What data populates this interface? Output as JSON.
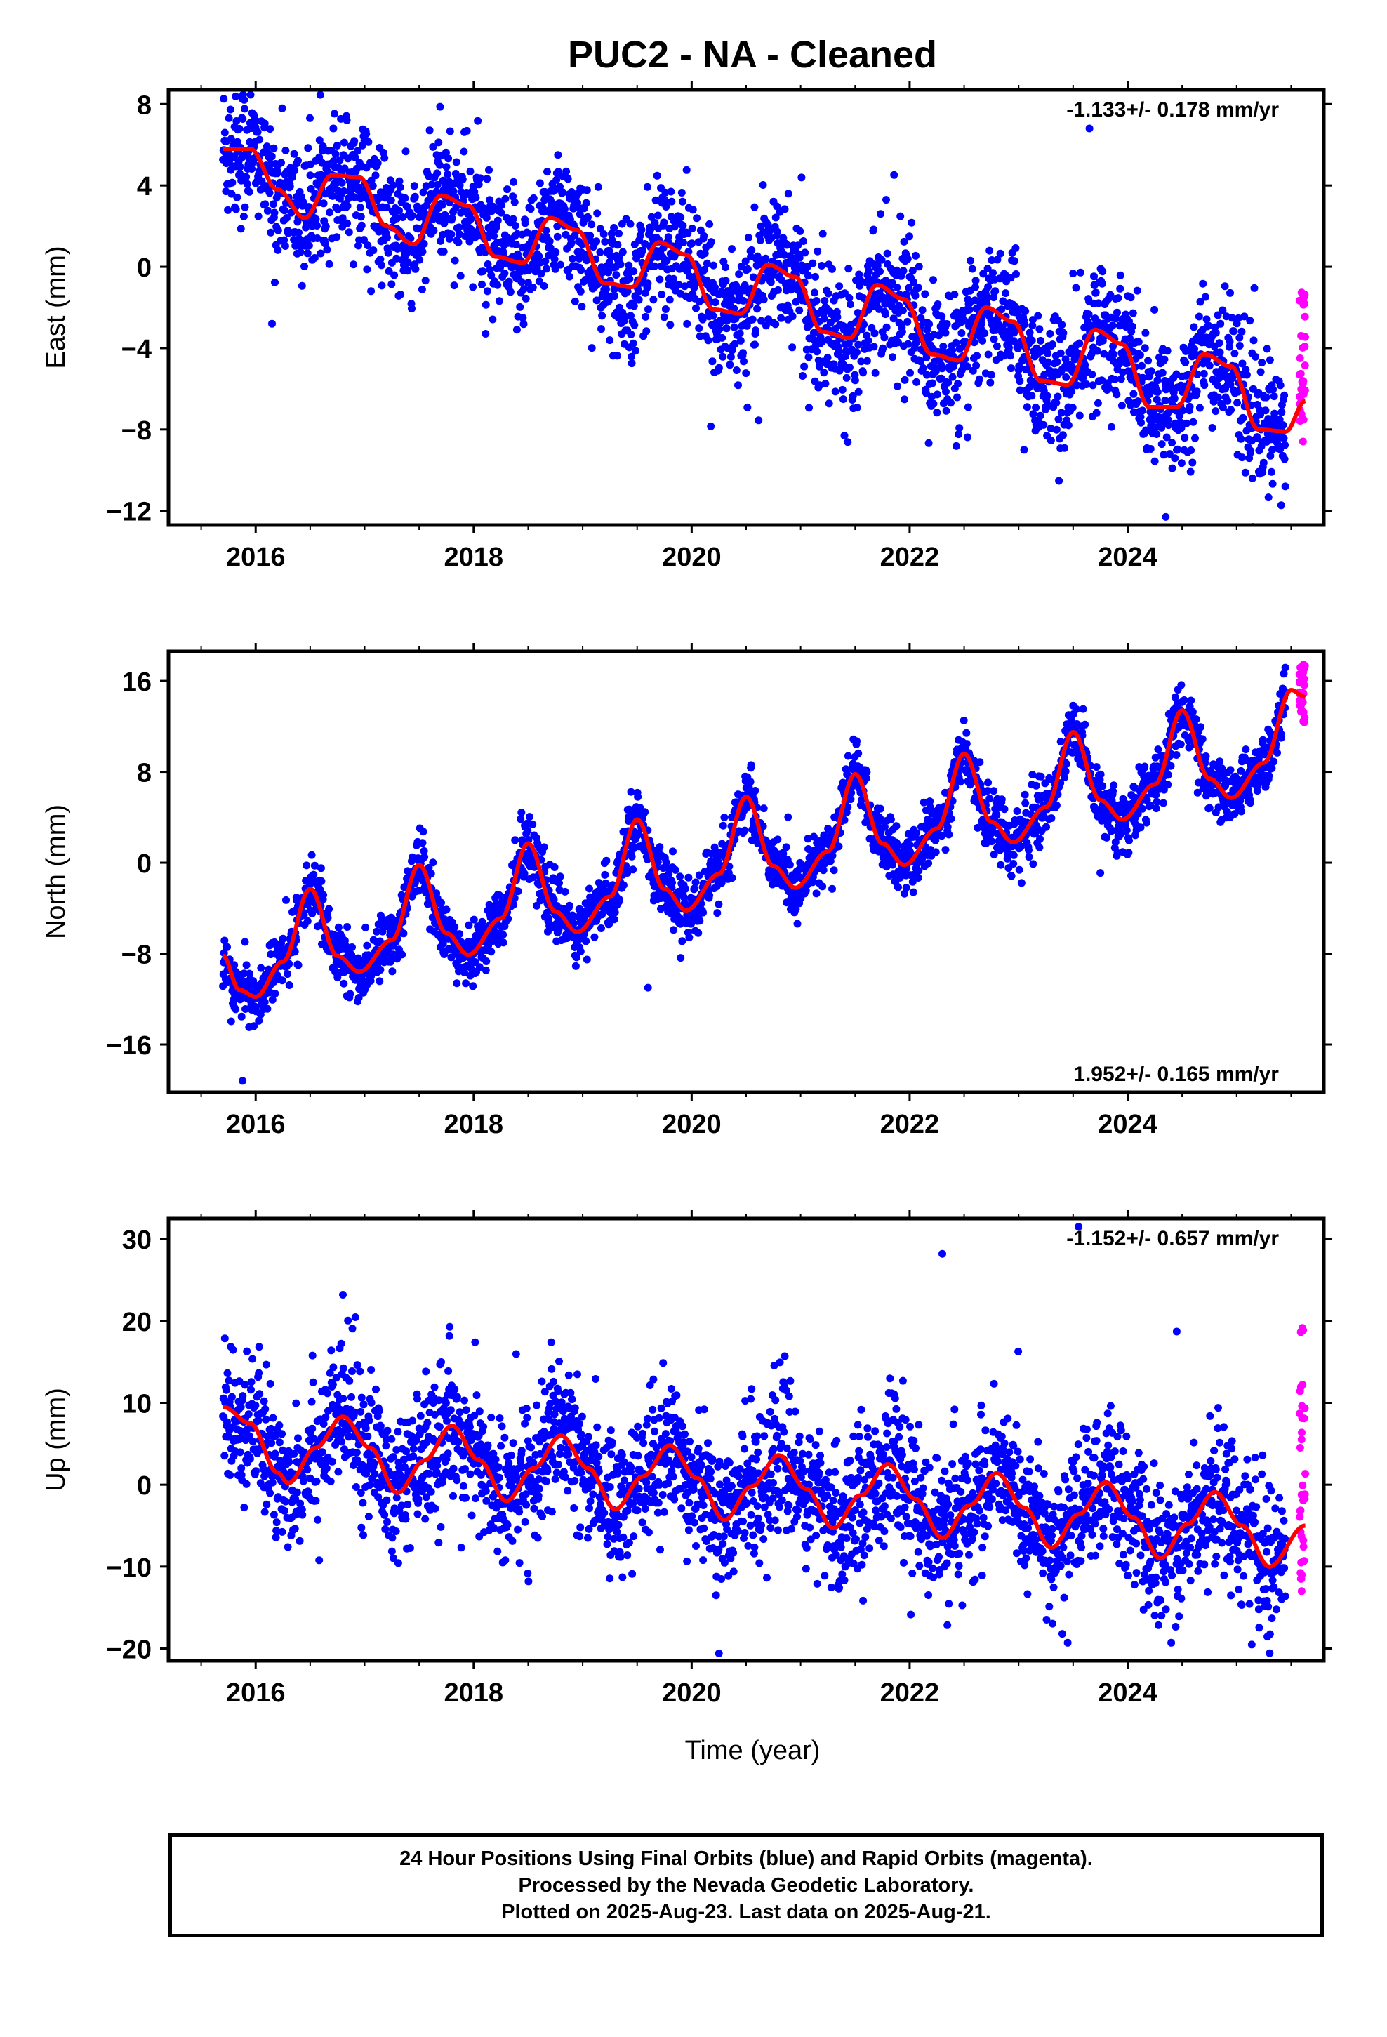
{
  "title": "PUC2  - NA - Cleaned",
  "xlabel": "Time (year)",
  "colors": {
    "final_orbits": "#0000ff",
    "rapid_orbits": "#ff00ff",
    "model": "#ff0000",
    "axes": "#000000"
  },
  "footer": {
    "line1": "24 Hour Positions Using Final Orbits (blue) and Rapid Orbits (magenta).",
    "line2": "Processed by the Nevada Geodetic Laboratory.",
    "line3": "Plotted on 2025-Aug-23. Last data on 2025-Aug-21."
  },
  "chart_data": [
    {
      "type": "scatter",
      "panel": "east",
      "ylabel": "East (mm)",
      "rate_text": "-1.133+/- 0.178 mm/yr",
      "rate_position": "top-right",
      "xlim": [
        2015.2,
        2025.8
      ],
      "ylim": [
        -12.7,
        8.7
      ],
      "xticks": [
        2016,
        2018,
        2020,
        2022,
        2024
      ],
      "xtick_labels": [
        "2016",
        "2018",
        "2020",
        "2022",
        "2024"
      ],
      "yticks": [
        -12,
        -8,
        -4,
        0,
        4,
        8
      ],
      "ytick_labels": [
        "−12",
        "−8",
        "−4",
        "0",
        "4",
        "8"
      ],
      "grid": false,
      "data_span": [
        2015.7,
        2025.63
      ],
      "rapid_span": [
        2025.45,
        2025.63
      ],
      "series": [
        {
          "role": "model",
          "x": [
            2015.7,
            2015.95,
            2016.2,
            2016.45,
            2016.7,
            2016.95,
            2017.2,
            2017.45,
            2017.7,
            2017.95,
            2018.2,
            2018.45,
            2018.7,
            2018.95,
            2019.2,
            2019.45,
            2019.7,
            2019.95,
            2020.2,
            2020.45,
            2020.7,
            2020.95,
            2021.2,
            2021.45,
            2021.7,
            2021.95,
            2022.2,
            2022.45,
            2022.7,
            2022.95,
            2023.2,
            2023.45,
            2023.7,
            2023.95,
            2024.2,
            2024.45,
            2024.7,
            2024.95,
            2025.2,
            2025.45,
            2025.63
          ],
          "y": [
            5.8,
            5.8,
            3.8,
            2.4,
            4.5,
            4.4,
            2.0,
            1.1,
            3.5,
            3.0,
            0.5,
            0.2,
            2.4,
            1.8,
            -0.8,
            -1.0,
            1.2,
            0.6,
            -2.1,
            -2.3,
            0.1,
            -0.5,
            -3.2,
            -3.5,
            -0.9,
            -1.6,
            -4.3,
            -4.6,
            -2.0,
            -2.7,
            -5.6,
            -5.8,
            -3.1,
            -3.8,
            -6.9,
            -6.9,
            -4.3,
            -4.9,
            -8.0,
            -8.1,
            -6.6
          ]
        },
        {
          "role": "final_orbits",
          "scatter_mm": 1.6,
          "outliers": [
            {
              "x": 2016.15,
              "y": -2.8
            },
            {
              "x": 2023.65,
              "y": 6.8
            },
            {
              "x": 2024.35,
              "y": -12.3
            },
            {
              "x": 2023.05,
              "y": -9.0
            }
          ]
        },
        {
          "role": "rapid_orbits",
          "values_range": [
            -8.6,
            -1.2
          ]
        }
      ]
    },
    {
      "type": "scatter",
      "panel": "north",
      "ylabel": "North (mm)",
      "rate_text": "1.952+/- 0.165 mm/yr",
      "rate_position": "bottom-right",
      "xlim": [
        2015.2,
        2025.8
      ],
      "ylim": [
        -20.2,
        18.6
      ],
      "xticks": [
        2016,
        2018,
        2020,
        2022,
        2024
      ],
      "xtick_labels": [
        "2016",
        "2018",
        "2020",
        "2022",
        "2024"
      ],
      "yticks": [
        -16,
        -8,
        0,
        8,
        16
      ],
      "ytick_labels": [
        "−16",
        "−8",
        "0",
        "8",
        "16"
      ],
      "grid": false,
      "data_span": [
        2015.7,
        2025.63
      ],
      "rapid_span": [
        2025.45,
        2025.63
      ],
      "series": [
        {
          "role": "model",
          "x": [
            2015.7,
            2015.85,
            2016.0,
            2016.25,
            2016.5,
            2016.75,
            2016.95,
            2017.25,
            2017.5,
            2017.75,
            2017.95,
            2018.25,
            2018.5,
            2018.75,
            2018.95,
            2019.25,
            2019.5,
            2019.75,
            2019.95,
            2020.25,
            2020.5,
            2020.75,
            2020.95,
            2021.25,
            2021.5,
            2021.75,
            2021.95,
            2022.25,
            2022.5,
            2022.75,
            2022.95,
            2023.25,
            2023.5,
            2023.75,
            2023.95,
            2024.25,
            2024.5,
            2024.75,
            2024.95,
            2025.25,
            2025.5,
            2025.63
          ],
          "y": [
            -8.2,
            -11.2,
            -11.8,
            -8.7,
            -2.3,
            -8.2,
            -9.6,
            -6.8,
            -0.2,
            -6.2,
            -8.1,
            -4.9,
            1.7,
            -4.3,
            -6.1,
            -3.0,
            3.8,
            -2.3,
            -4.2,
            -1.0,
            5.8,
            -0.3,
            -2.2,
            1.0,
            7.8,
            1.7,
            -0.2,
            3.0,
            9.6,
            3.6,
            1.8,
            4.9,
            11.5,
            5.5,
            3.8,
            6.9,
            13.4,
            7.4,
            5.7,
            8.8,
            15.2,
            14.6
          ]
        },
        {
          "role": "final_orbits",
          "scatter_mm": 1.3,
          "outliers": [
            {
              "x": 2015.88,
              "y": -19.2
            },
            {
              "x": 2019.6,
              "y": -11.0
            },
            {
              "x": 2023.9,
              "y": 0.6
            }
          ]
        },
        {
          "role": "rapid_orbits",
          "values_range": [
            12.3,
            17.5
          ]
        }
      ]
    },
    {
      "type": "scatter",
      "panel": "up",
      "ylabel": "Up (mm)",
      "rate_text": "-1.152+/- 0.657 mm/yr",
      "rate_position": "top-right",
      "xlim": [
        2015.2,
        2025.8
      ],
      "ylim": [
        -21.5,
        32.5
      ],
      "xticks": [
        2016,
        2018,
        2020,
        2022,
        2024
      ],
      "xtick_labels": [
        "2016",
        "2018",
        "2020",
        "2022",
        "2024"
      ],
      "yticks": [
        -20,
        -10,
        0,
        10,
        20,
        30
      ],
      "ytick_labels": [
        "−20",
        "−10",
        "0",
        "10",
        "20",
        "30"
      ],
      "grid": false,
      "data_span": [
        2015.7,
        2025.63
      ],
      "rapid_span": [
        2025.45,
        2025.63
      ],
      "series": [
        {
          "role": "model",
          "x": [
            2015.7,
            2015.95,
            2016.2,
            2016.3,
            2016.55,
            2016.8,
            2017.05,
            2017.3,
            2017.55,
            2017.8,
            2018.05,
            2018.3,
            2018.55,
            2018.8,
            2019.05,
            2019.3,
            2019.55,
            2019.8,
            2020.05,
            2020.3,
            2020.55,
            2020.8,
            2021.05,
            2021.3,
            2021.55,
            2021.8,
            2022.05,
            2022.3,
            2022.55,
            2022.8,
            2023.05,
            2023.3,
            2023.55,
            2023.8,
            2024.05,
            2024.3,
            2024.55,
            2024.8,
            2025.05,
            2025.3,
            2025.63
          ],
          "y": [
            9.5,
            7.5,
            1.5,
            0.2,
            4.5,
            8.3,
            4.5,
            -1.0,
            3.0,
            7.2,
            3.0,
            -2.0,
            2.0,
            6.0,
            2.0,
            -3.0,
            1.0,
            4.8,
            0.8,
            -4.3,
            -0.2,
            3.6,
            -0.5,
            -5.3,
            -1.3,
            2.5,
            -1.7,
            -6.5,
            -2.5,
            1.4,
            -2.8,
            -7.7,
            -3.6,
            0.3,
            -4.0,
            -9.0,
            -4.8,
            -0.9,
            -5.0,
            -10.0,
            -5.0
          ]
        },
        {
          "role": "final_orbits",
          "scatter_mm": 4.2,
          "outliers": [
            {
              "x": 2016.8,
              "y": 23.2
            },
            {
              "x": 2022.3,
              "y": 28.2
            },
            {
              "x": 2023.55,
              "y": 31.5
            },
            {
              "x": 2020.25,
              "y": -20.6
            },
            {
              "x": 2023.45,
              "y": -19.3
            },
            {
              "x": 2024.45,
              "y": 18.7
            },
            {
              "x": 2024.4,
              "y": -19.3
            }
          ]
        },
        {
          "role": "rapid_orbits",
          "values_range": [
            -15.4,
            20.5
          ]
        }
      ]
    }
  ]
}
